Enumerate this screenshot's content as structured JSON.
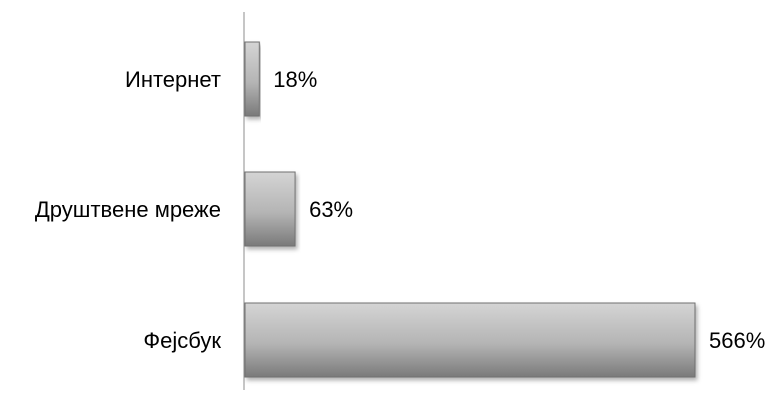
{
  "chart_data": {
    "type": "bar",
    "orientation": "horizontal",
    "categories": [
      "Интернет",
      "Друштвене мреже",
      "Фејсбук"
    ],
    "values": [
      18,
      63,
      566
    ],
    "data_labels": [
      "18%",
      "63%",
      "566%"
    ],
    "unit": "%",
    "title": "",
    "xlabel": "",
    "ylabel": "",
    "xlim": [
      0,
      600
    ],
    "grid": false,
    "legend": "none",
    "colors": {
      "bar_light": "#d4d4d4",
      "bar_mid": "#b4b4b4",
      "bar_dark": "#7a7a7a",
      "bar_edge": "#6f6f6f",
      "axis": "#8c8c8c"
    }
  }
}
